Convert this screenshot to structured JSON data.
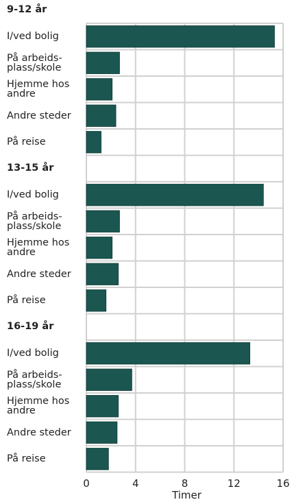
{
  "chart_data": [
    {
      "type": "bar",
      "orientation": "horizontal",
      "title": "9-12 år",
      "categories": [
        "I/ved bolig",
        "På arbeids-\nplass/skole",
        "Hjemme hos\nandre",
        "Andre steder",
        "På reise"
      ],
      "values": [
        15.3,
        2.7,
        2.1,
        2.4,
        1.2
      ],
      "color": "#1b5650",
      "xlim": [
        0,
        16
      ],
      "xticks": [
        0,
        4,
        8,
        12,
        16
      ],
      "grid": true
    },
    {
      "type": "bar",
      "orientation": "horizontal",
      "title": "13-15 år",
      "categories": [
        "I/ved bolig",
        "På arbeids-\nplass/skole",
        "Hjemme hos\nandre",
        "Andre steder",
        "På reise"
      ],
      "values": [
        14.4,
        2.7,
        2.1,
        2.6,
        1.6
      ],
      "color": "#1b5650",
      "xlim": [
        0,
        16
      ],
      "xticks": [
        0,
        4,
        8,
        12,
        16
      ],
      "grid": true
    },
    {
      "type": "bar",
      "orientation": "horizontal",
      "title": "16-19 år",
      "categories": [
        "I/ved bolig",
        "På arbeids-\nplass/skole",
        "Hjemme hos\nandre",
        "Andre steder",
        "På reise"
      ],
      "values": [
        13.3,
        3.7,
        2.6,
        2.5,
        1.8
      ],
      "color": "#1b5650",
      "xlim": [
        0,
        16
      ],
      "xticks": [
        0,
        4,
        8,
        12,
        16
      ],
      "grid": true,
      "xlabel": "Timer"
    }
  ]
}
